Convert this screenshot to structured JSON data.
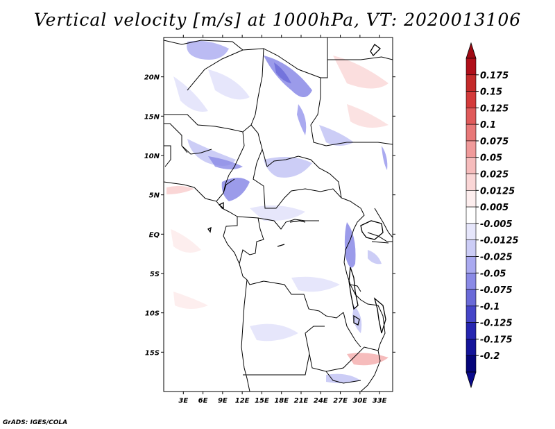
{
  "title": "Vertical velocity [m/s] at 1000hPa, VT: 2020013106",
  "credit": "GrADS: IGES/COLA",
  "map": {
    "lon_range": [
      0,
      35
    ],
    "lat_range": [
      -20,
      25
    ],
    "lon_ticks": [
      "3E",
      "6E",
      "9E",
      "12E",
      "15E",
      "18E",
      "21E",
      "24E",
      "27E",
      "30E",
      "33E"
    ],
    "lat_ticks": [
      "20N",
      "15N",
      "10N",
      "5N",
      "EQ",
      "5S",
      "10S",
      "15S"
    ]
  },
  "colorbar": {
    "levels": [
      "0.175",
      "0.15",
      "0.125",
      "0.1",
      "0.075",
      "0.05",
      "0.025",
      "0.0125",
      "0.005",
      "-0.005",
      "-0.0125",
      "-0.025",
      "-0.05",
      "-0.075",
      "-0.1",
      "-0.125",
      "-0.175",
      "-0.2"
    ],
    "colors": [
      "#b00f1a",
      "#c42a2a",
      "#d43a3a",
      "#e05a5a",
      "#e87878",
      "#f09a9a",
      "#f6bcbc",
      "#fad6d6",
      "#fdeeee",
      "#ffffff",
      "#e6e6fb",
      "#cccdf6",
      "#aaaaf0",
      "#8a8ae6",
      "#6a6ad8",
      "#4545c8",
      "#2525b0",
      "#14149a",
      "#05057a"
    ],
    "top_tip_color": "#a00a14",
    "bottom_tip_color": "#0a0a8c"
  }
}
